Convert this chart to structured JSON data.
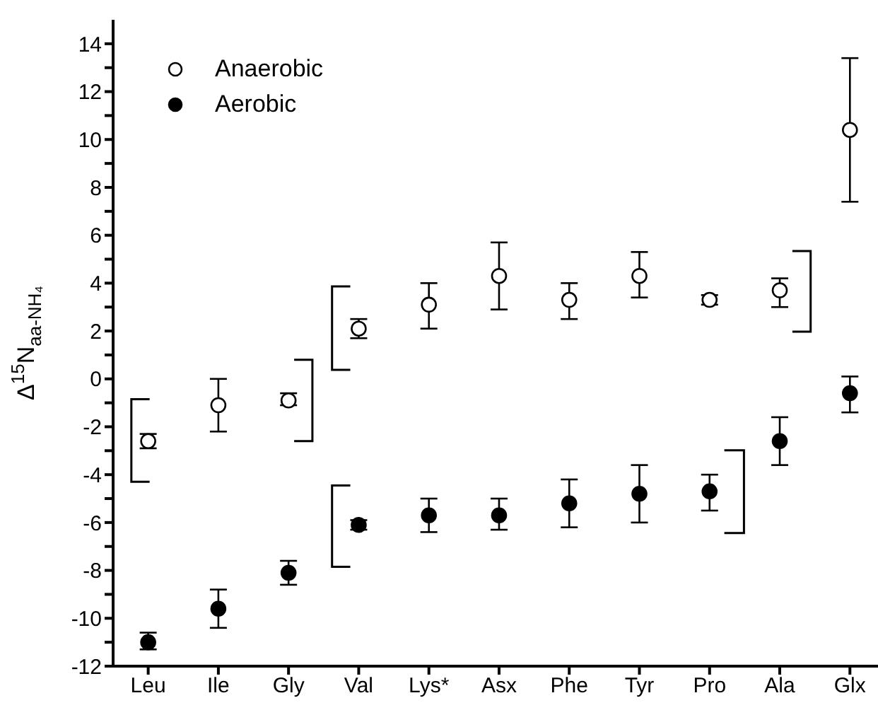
{
  "chart_data": {
    "type": "scatter",
    "ylabel": "Δ$^{15}$N$_{aa-NH₄}$",
    "categories": [
      "Leu",
      "Ile",
      "Gly",
      "Val",
      "Lys*",
      "Asx",
      "Phe",
      "Tyr",
      "Pro",
      "Ala",
      "Glx"
    ],
    "series": [
      {
        "name": "Anaerobic",
        "color": "#ffffff",
        "values": [
          -2.6,
          -1.1,
          -0.9,
          2.1,
          3.1,
          4.3,
          3.3,
          4.3,
          3.3,
          3.7,
          10.4
        ],
        "errors": [
          [
            -2.9,
            -2.3
          ],
          [
            -2.2,
            0
          ],
          [
            -1.1,
            -0.6
          ],
          [
            1.7,
            2.5
          ],
          [
            2.1,
            4.0
          ],
          [
            2.9,
            5.7
          ],
          [
            2.5,
            4.0
          ],
          [
            3.4,
            5.3
          ],
          [
            3.1,
            3.5
          ],
          [
            3.0,
            4.2
          ],
          [
            7.4,
            13.4
          ]
        ]
      },
      {
        "name": "Aerobic",
        "color": "#000000",
        "values": [
          -11.0,
          -9.6,
          -8.1,
          -6.1,
          -5.7,
          -5.7,
          -5.2,
          -4.8,
          -4.7,
          -2.6,
          -0.6
        ],
        "errors": [
          [
            -11.3,
            -10.6
          ],
          [
            -10.4,
            -8.8
          ],
          [
            -8.6,
            -7.6
          ],
          [
            -6.3,
            -5.9
          ],
          [
            -6.4,
            -5.0
          ],
          [
            -6.3,
            -5.0
          ],
          [
            -6.2,
            -4.2
          ],
          [
            -6.0,
            -3.6
          ],
          [
            -5.5,
            -4.0
          ],
          [
            -3.6,
            -1.6
          ],
          [
            -1.4,
            0.1
          ]
        ]
      }
    ],
    "ylim": [
      -12,
      15
    ],
    "yticks": [
      -12,
      {
        "value": -11,
        "label": null
      },
      -10,
      {
        "value": -9,
        "label": null
      },
      -8,
      {
        "value": -7,
        "label": null
      },
      -6,
      {
        "value": -5,
        "label": null
      },
      -4,
      {
        "value": -3,
        "label": null
      },
      -2,
      {
        "value": -1,
        "label": null
      },
      0,
      {
        "value": 1,
        "label": null
      },
      2,
      {
        "value": 3,
        "label": null
      },
      4,
      {
        "value": 5,
        "label": null
      },
      6,
      {
        "value": 7,
        "label": null
      },
      8,
      {
        "value": 9,
        "label": null
      },
      10,
      {
        "value": 11,
        "label": null
      },
      12,
      {
        "value": 13,
        "label": null
      },
      14
    ],
    "marker": "circle",
    "grid": false,
    "legend": "top left"
  }
}
